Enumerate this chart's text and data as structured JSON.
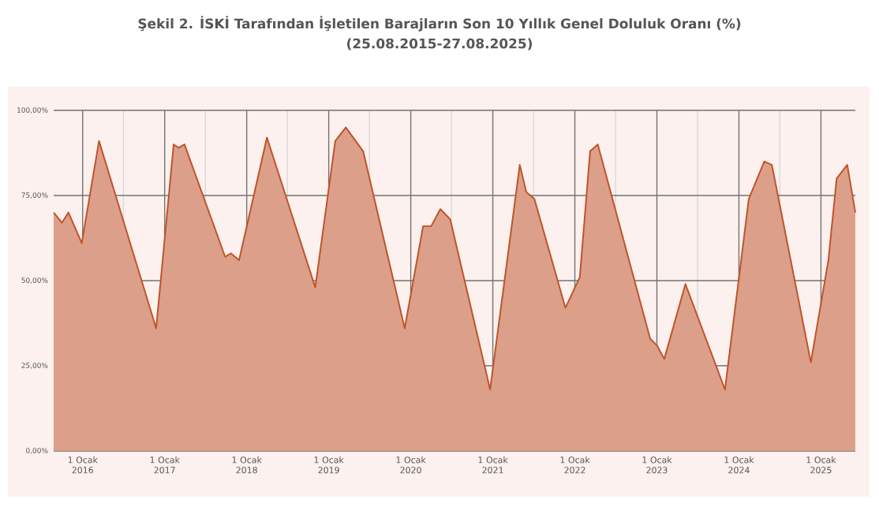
{
  "chart_data": {
    "type": "area",
    "title": "Şekil 2. İSKİ Tarafından İşletilen Barajların Son 10 Yıllık Genel Doluluk Oranı (%)",
    "subtitle": "(25.08.2015-27.08.2025)",
    "x": [
      "2015-08-25",
      "2015-10-01",
      "2015-10-30",
      "2015-12-28",
      "2016-03-14",
      "2016-11-24",
      "2017-02-10",
      "2017-03-04",
      "2017-03-30",
      "2017-09-27",
      "2017-10-23",
      "2017-11-28",
      "2018-04-01",
      "2018-11-02",
      "2019-01-30",
      "2019-03-18",
      "2019-06-03",
      "2019-12-05",
      "2020-02-25",
      "2020-04-01",
      "2020-05-12",
      "2020-06-25",
      "2020-12-20",
      "2021-05-01",
      "2021-05-30",
      "2021-07-05",
      "2021-11-20",
      "2022-01-23",
      "2022-03-10",
      "2022-04-13",
      "2022-12-02",
      "2023-01-01",
      "2023-02-03",
      "2023-05-08",
      "2023-10-31",
      "2024-02-14",
      "2024-04-23",
      "2024-05-27",
      "2024-11-17",
      "2025-02-03",
      "2025-03-12",
      "2025-04-28",
      "2025-06-03"
    ],
    "values": [
      70,
      67,
      70,
      61,
      91,
      36,
      90,
      89,
      90,
      57,
      58,
      56,
      92,
      48,
      91,
      95,
      88,
      36,
      66,
      66,
      71,
      68,
      18,
      84,
      76,
      74,
      42,
      51,
      88,
      90,
      33,
      31,
      27,
      49,
      18,
      74,
      85,
      84,
      26,
      56,
      80,
      84,
      70
    ],
    "color": "#c0532a",
    "xlim": [
      "2015-08-25",
      "2025-06-03"
    ],
    "ylim": [
      0,
      100
    ],
    "xticks": [
      {
        "value": "2016-01-01",
        "label": "1 Ocak 2016"
      },
      {
        "value": "2016-07-01",
        "label": null
      },
      {
        "value": "2017-01-01",
        "label": "1 Ocak 2017"
      },
      {
        "value": "2017-07-01",
        "label": null
      },
      {
        "value": "2018-01-01",
        "label": "1 Ocak 2018"
      },
      {
        "value": "2018-07-01",
        "label": null
      },
      {
        "value": "2019-01-01",
        "label": "1 Ocak 2019"
      },
      {
        "value": "2019-07-01",
        "label": null
      },
      {
        "value": "2020-01-01",
        "label": "1 Ocak 2020"
      },
      {
        "value": "2020-07-01",
        "label": null
      },
      {
        "value": "2021-01-01",
        "label": "1 Ocak 2021"
      },
      {
        "value": "2021-07-01",
        "label": null
      },
      {
        "value": "2022-01-01",
        "label": "1 Ocak 2022"
      },
      {
        "value": "2022-07-01",
        "label": null
      },
      {
        "value": "2023-01-01",
        "label": "1 Ocak 2023"
      },
      {
        "value": "2023-07-01",
        "label": null
      },
      {
        "value": "2024-01-01",
        "label": "1 Ocak 2024"
      },
      {
        "value": "2024-07-01",
        "label": null
      },
      {
        "value": "2025-01-01",
        "label": "1 Ocak 2025"
      }
    ],
    "yticks": [
      {
        "value": 0,
        "label": "0,00%"
      },
      {
        "value": 25,
        "label": "25,00%"
      },
      {
        "value": 50,
        "label": "50,00%"
      },
      {
        "value": 75,
        "label": "75,00%"
      },
      {
        "value": 100,
        "label": "100,00%"
      }
    ],
    "grid": true
  }
}
